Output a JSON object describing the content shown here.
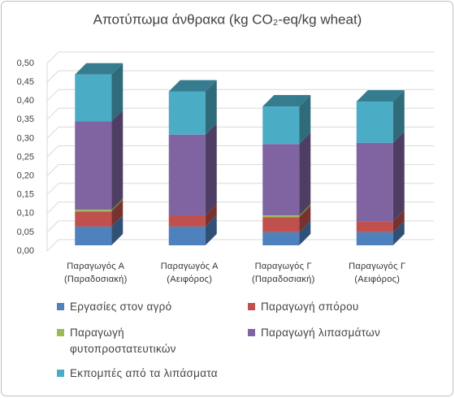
{
  "chart_data": {
    "type": "bar3d_stacked",
    "title": "Αποτύπωμα άνθρακα (kg CO₂-eq/kg wheat)",
    "categories": [
      "Παραγωγός Α (Παραδοσιακή)",
      "Παραγωγός Α (Αειφόρος)",
      "Παραγωγός Γ (Παραδοσιακή)",
      "Παραγωγός Γ (Αειφόρος)"
    ],
    "series": [
      {
        "name": "Εργασίες στον αγρό",
        "color": "#4f81bd",
        "values": [
          0.05,
          0.05,
          0.035,
          0.035
        ]
      },
      {
        "name": "Παραγωγή σπόρου",
        "color": "#c0504d",
        "values": [
          0.04,
          0.03,
          0.04,
          0.028
        ]
      },
      {
        "name": "Παραγωγή φυτοπροστατευτικών",
        "color": "#9bbb59",
        "values": [
          0.005,
          0,
          0.005,
          0
        ]
      },
      {
        "name": "Παραγωγή λιπασμάτων",
        "color": "#8064a2",
        "values": [
          0.235,
          0.215,
          0.19,
          0.21
        ]
      },
      {
        "name": "Εκπομπές από τα λιπάσματα",
        "color": "#4bacc6",
        "values": [
          0.125,
          0.115,
          0.1,
          0.11
        ]
      }
    ],
    "ylim": [
      0,
      0.5
    ],
    "yticks": [
      {
        "value": 0,
        "label": "0,00"
      },
      {
        "value": 0.05,
        "label": "0,05"
      },
      {
        "value": 0.1,
        "label": "0,10"
      },
      {
        "value": 0.15,
        "label": "0,15"
      },
      {
        "value": 0.2,
        "label": "0,20"
      },
      {
        "value": 0.25,
        "label": "0,25"
      },
      {
        "value": 0.3,
        "label": "0,30"
      },
      {
        "value": 0.35,
        "label": "0,35"
      },
      {
        "value": 0.4,
        "label": "0,40"
      },
      {
        "value": 0.45,
        "label": "0,45"
      },
      {
        "value": 0.5,
        "label": "0,50"
      }
    ],
    "grid": true
  }
}
